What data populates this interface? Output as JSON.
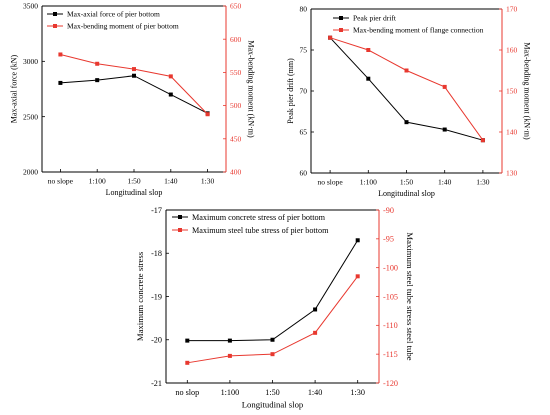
{
  "chart_data": [
    {
      "type": "line",
      "categories": [
        "no slope",
        "1:100",
        "1:50",
        "1:40",
        "1:30"
      ],
      "xlabel": "Longitudinal slop",
      "ylabel_left": "Max-axial force (kN)",
      "ylabel_right": "Max-bending moment (kN·m)",
      "ylim_left": [
        2000,
        3500
      ],
      "yticks_left": [
        2000,
        2500,
        3000,
        3500
      ],
      "ylim_right": [
        400,
        650
      ],
      "yticks_right": [
        400,
        450,
        500,
        550,
        600,
        650
      ],
      "legend_position": "top-left",
      "series": [
        {
          "name": "Max-axial force of pier bottom",
          "axis": "left",
          "color": "#000000",
          "values": [
            2805,
            2830,
            2870,
            2700,
            2530
          ]
        },
        {
          "name": "Max-bending moment of pier bottom",
          "axis": "right",
          "color": "#e8382f",
          "values": [
            577,
            563,
            555,
            544,
            487
          ]
        }
      ]
    },
    {
      "type": "line",
      "categories": [
        "no slope",
        "1:100",
        "1:50",
        "1:40",
        "1:30"
      ],
      "xlabel": "Longitudinal slop",
      "ylabel_left": "Peak pier drift (mm)",
      "ylabel_right": "Max-bending moment (kN·m)",
      "ylim_left": [
        60,
        80
      ],
      "yticks_left": [
        60,
        65,
        70,
        75,
        80
      ],
      "ylim_right": [
        130,
        170
      ],
      "yticks_right": [
        130,
        140,
        150,
        160,
        170
      ],
      "legend_position": "top-right",
      "series": [
        {
          "name": "Peak pier drift",
          "axis": "left",
          "color": "#000000",
          "values": [
            76.5,
            71.5,
            66.2,
            65.3,
            64.0
          ]
        },
        {
          "name": "Max-bending moment of flange connection",
          "axis": "right",
          "color": "#e8382f",
          "values": [
            163,
            160,
            155,
            151,
            138
          ]
        }
      ]
    },
    {
      "type": "line",
      "categories": [
        "no slop",
        "1:100",
        "1:50",
        "1:40",
        "1:30"
      ],
      "xlabel": "Longitudinal slop",
      "ylabel_left": "Maximum concrete stress",
      "ylabel_right": "Maximum steel tube stress steel tube",
      "ylim_left": [
        -21,
        -17
      ],
      "yticks_left": [
        -21,
        -20,
        -19,
        -18,
        -17
      ],
      "ylim_right": [
        -120,
        -90
      ],
      "yticks_right": [
        -120,
        -115,
        -110,
        -105,
        -100,
        -95,
        -90
      ],
      "legend_position": "top-left",
      "series": [
        {
          "name": "Maximum concrete stress of pier bottom",
          "axis": "left",
          "color": "#000000",
          "values": [
            -20.02,
            -20.02,
            -20.0,
            -19.3,
            -17.7
          ]
        },
        {
          "name": "Maximum steel tube stress of pier bottom",
          "axis": "right",
          "color": "#e8382f",
          "values": [
            -116.5,
            -115.3,
            -115.0,
            -111.3,
            -101.5
          ]
        }
      ]
    }
  ]
}
